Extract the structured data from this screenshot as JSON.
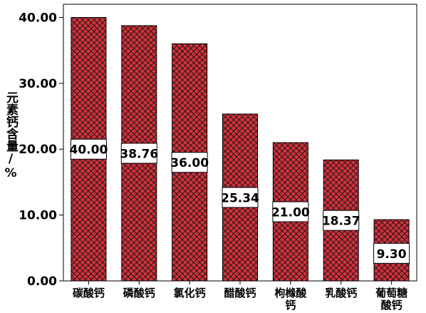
{
  "chart_data": {
    "type": "bar",
    "categories": [
      [
        "碳酸钙"
      ],
      [
        "磷酸钙"
      ],
      [
        "氯化钙"
      ],
      [
        "醋酸钙"
      ],
      [
        "枸橼酸",
        "钙"
      ],
      [
        "乳酸钙"
      ],
      [
        "葡萄糖",
        "酸钙"
      ]
    ],
    "values": [
      40.0,
      38.76,
      36.0,
      25.34,
      21.0,
      18.37,
      9.3
    ],
    "data_labels": [
      "40.00",
      "38.76",
      "36.00",
      "25.34",
      "21.00",
      "18.37",
      "9.30"
    ],
    "ylabel": "元素钙含量/%",
    "xlabel": "",
    "ylim": [
      0,
      42
    ],
    "yticks": [
      0,
      10,
      20,
      30,
      40
    ],
    "ytick_labels": [
      "0.00",
      "10.00",
      "20.00",
      "30.00",
      "40.00"
    ],
    "bar_fill": "#d9303a",
    "hatch_color": "#1a1a1a",
    "grid": false,
    "legend": "none"
  }
}
